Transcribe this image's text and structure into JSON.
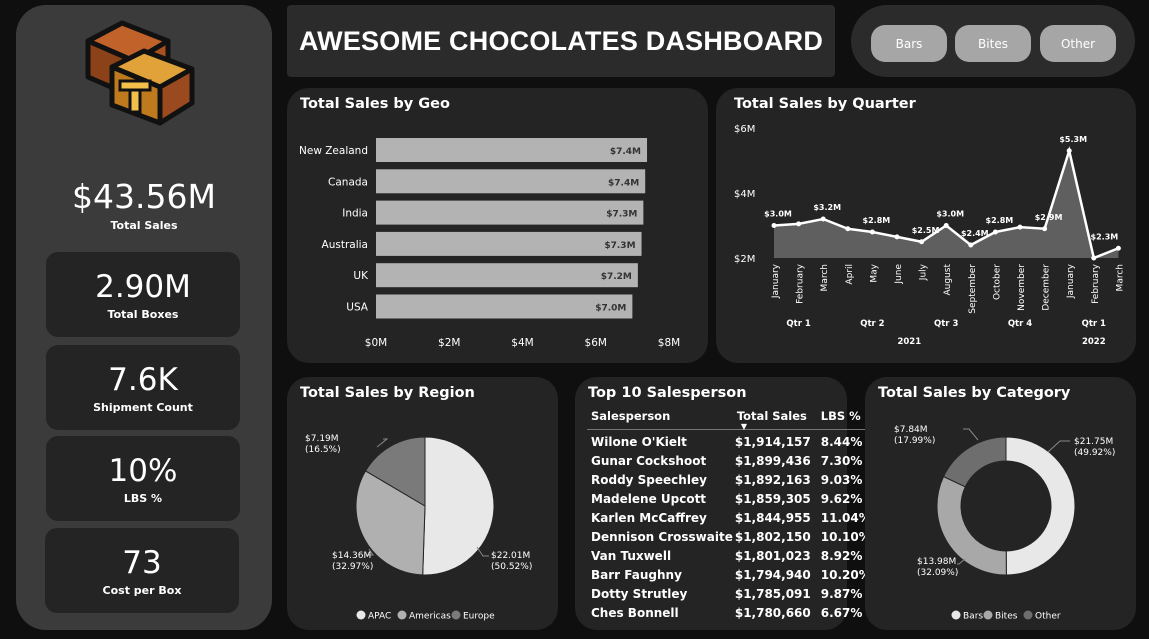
{
  "header": {
    "title": "AWESOME CHOCOLATES DASHBOARD"
  },
  "slicer": {
    "items": [
      "Bars",
      "Bites",
      "Other"
    ]
  },
  "kpis": {
    "total_sales": {
      "value": "$43.56M",
      "label": "Total Sales"
    },
    "total_boxes": {
      "value": "2.90M",
      "label": "Total Boxes"
    },
    "shipment_count": {
      "value": "7.6K",
      "label": "Shipment Count"
    },
    "lbs_pct": {
      "value": "10%",
      "label": "LBS %"
    },
    "cost_per_box": {
      "value": "73",
      "label": "Cost per Box"
    }
  },
  "geo": {
    "title": "Total Sales by Geo",
    "chart_data": {
      "type": "bar",
      "orientation": "horizontal",
      "categories": [
        "New Zealand",
        "Canada",
        "India",
        "Australia",
        "UK",
        "USA"
      ],
      "values": [
        7.4,
        7.35,
        7.3,
        7.25,
        7.15,
        7.0
      ],
      "labels": [
        "$7.4M",
        "$7.4M",
        "$7.3M",
        "$7.3M",
        "$7.2M",
        "$7.0M"
      ],
      "xticks": [
        "$0M",
        "$2M",
        "$4M",
        "$6M",
        "$8M"
      ],
      "xlim": [
        0,
        8
      ],
      "colors": {
        "bar": "#b3b3b3"
      }
    }
  },
  "quarter": {
    "title": "Total Sales by Quarter",
    "chart_data": {
      "type": "area",
      "months": [
        "January",
        "February",
        "March",
        "April",
        "May",
        "June",
        "July",
        "August",
        "September",
        "October",
        "November",
        "December",
        "January",
        "February",
        "March"
      ],
      "values": [
        3.0,
        3.05,
        3.2,
        2.9,
        2.8,
        2.65,
        2.5,
        3.0,
        2.4,
        2.8,
        2.95,
        2.9,
        5.3,
        2.0,
        2.3
      ],
      "labels": [
        "$3.0M",
        "",
        "$3.2M",
        "",
        "$2.8M",
        "",
        "$2.5M",
        "$3.0M",
        "$2.4M",
        "$2.8M",
        "",
        "$2.9M",
        "$5.3M",
        "",
        "$2.3M"
      ],
      "yticks": [
        "$6M",
        "$4M",
        "$2M"
      ],
      "ylim": [
        2,
        6
      ],
      "quarters": [
        {
          "label": "Qtr 1",
          "center": 1
        },
        {
          "label": "Qtr 2",
          "center": 4
        },
        {
          "label": "Qtr 3",
          "center": 7
        },
        {
          "label": "Qtr 4",
          "center": 10
        },
        {
          "label": "Qtr 1",
          "center": 13
        }
      ],
      "years": [
        {
          "label": "2021",
          "center": 5.5
        },
        {
          "label": "2022",
          "center": 13
        }
      ],
      "colors": {
        "line": "#ffffff",
        "area": "#5f5f5f"
      }
    }
  },
  "region": {
    "title": "Total Sales by Region",
    "chart_data": {
      "type": "pie",
      "slices": [
        {
          "name": "APAC",
          "value": 22.01,
          "label": "$22.01M",
          "pct": "(50.52%)",
          "color": "#e8e8e8"
        },
        {
          "name": "Americas",
          "value": 14.36,
          "label": "$14.36M",
          "pct": "(32.97%)",
          "color": "#b0b0b0"
        },
        {
          "name": "Europe",
          "value": 7.19,
          "label": "$7.19M",
          "pct": "(16.5%)",
          "color": "#7a7a7a"
        }
      ],
      "legend": [
        "APAC",
        "Americas",
        "Europe"
      ]
    }
  },
  "salespeople": {
    "title": "Top 10 Salesperson",
    "columns": [
      "Salesperson",
      "Total Sales",
      "LBS %"
    ],
    "rows": [
      [
        "Wilone O'Kielt",
        "$1,914,157",
        "8.44%"
      ],
      [
        "Gunar Cockshoot",
        "$1,899,436",
        "7.30%"
      ],
      [
        "Roddy Speechley",
        "$1,892,163",
        "9.03%"
      ],
      [
        "Madelene Upcott",
        "$1,859,305",
        "9.62%"
      ],
      [
        "Karlen McCaffrey",
        "$1,844,955",
        "11.04%"
      ],
      [
        "Dennison Crosswaite",
        "$1,802,150",
        "10.10%"
      ],
      [
        "Van Tuxwell",
        "$1,801,023",
        "8.92%"
      ],
      [
        "Barr Faughny",
        "$1,794,940",
        "10.20%"
      ],
      [
        "Dotty Strutley",
        "$1,785,091",
        "9.87%"
      ],
      [
        "Ches Bonnell",
        "$1,780,660",
        "6.67%"
      ]
    ]
  },
  "category": {
    "title": "Total Sales by Category",
    "chart_data": {
      "type": "donut",
      "slices": [
        {
          "name": "Bars",
          "value": 21.75,
          "label": "$21.75M",
          "pct": "(49.92%)",
          "color": "#e8e8e8"
        },
        {
          "name": "Bites",
          "value": 13.98,
          "label": "$13.98M",
          "pct": "(32.09%)",
          "color": "#a8a8a8"
        },
        {
          "name": "Other",
          "value": 7.84,
          "label": "$7.84M",
          "pct": "(17.99%)",
          "color": "#6e6e6e"
        }
      ],
      "legend": [
        "Bars",
        "Bites",
        "Other"
      ]
    }
  }
}
